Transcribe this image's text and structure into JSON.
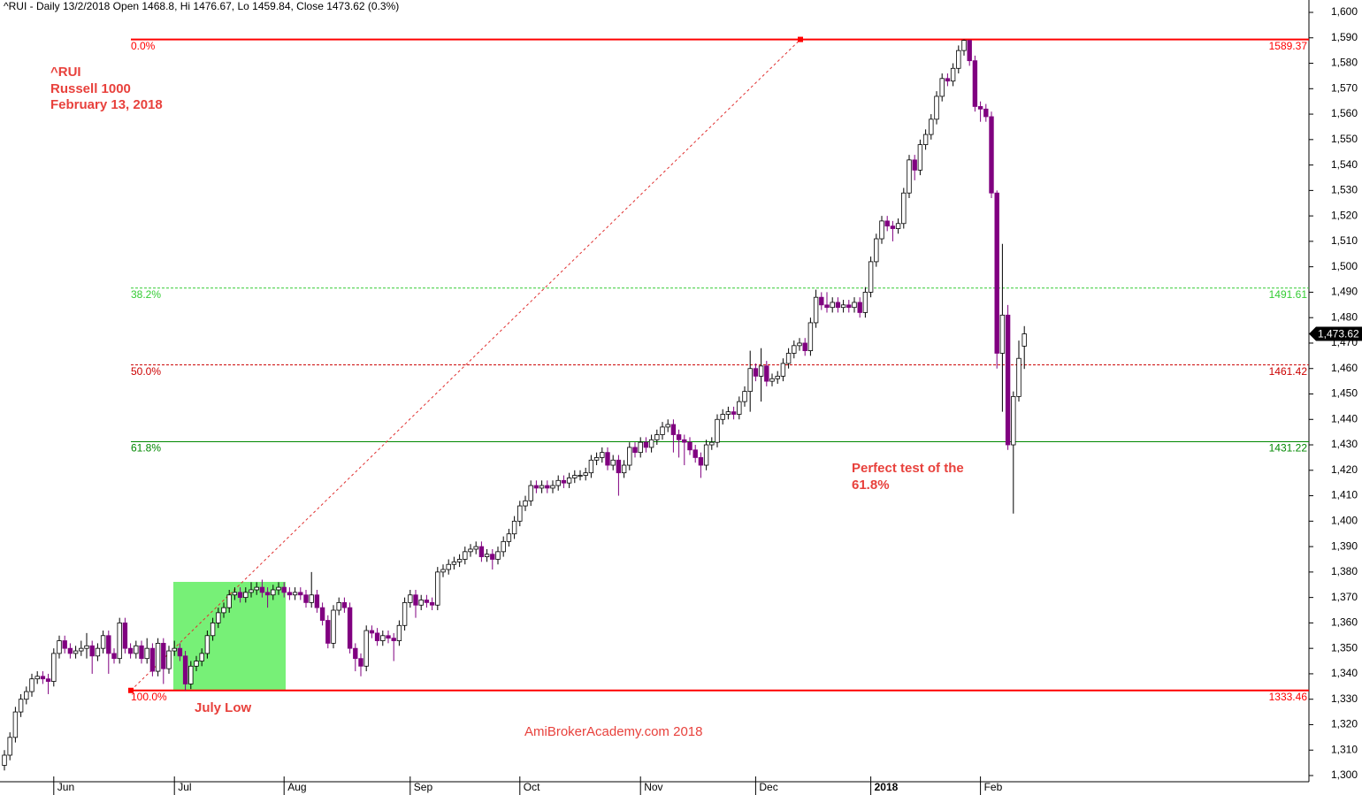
{
  "chart_data": {
    "type": "candlestick",
    "title": "^RUI - Daily 13/2/2018 Open 1468.8, Hi 1476.67, Lo 1459.84, Close 1473.62 (0.3%)",
    "annotations": {
      "symbol": "^RUI",
      "name": "Russell 1000",
      "date": "February 13, 2018",
      "july_low": "July Low",
      "test_line1": "Perfect test of the",
      "test_line2": "61.8%",
      "watermark": "AmiBrokerAcademy.com   2018"
    },
    "last_price_label": "1,473.62",
    "last_price": 1473.62,
    "up_color": "#ffffff",
    "down_color": "#800080",
    "open": [
      1304,
      1308,
      1315,
      1325,
      1330,
      1333,
      1338,
      1339,
      1338,
      1337,
      1348,
      1353,
      1350,
      1348,
      1349,
      1350,
      1351,
      1347,
      1350,
      1355,
      1348,
      1346,
      1360,
      1350,
      1348,
      1351,
      1346,
      1350,
      1341,
      1352,
      1342,
      1349,
      1350,
      1347,
      1336,
      1343,
      1345,
      1348,
      1355,
      1360,
      1364,
      1366,
      1371,
      1372,
      1370,
      1372,
      1373,
      1374,
      1372,
      1371,
      1373,
      1374,
      1372,
      1371,
      1372,
      1371,
      1368,
      1371,
      1366,
      1361,
      1352,
      1365,
      1368,
      1366,
      1350,
      1346,
      1343,
      1357,
      1356,
      1353,
      1355,
      1354,
      1353,
      1359,
      1368,
      1371,
      1367,
      1369,
      1368,
      1367,
      1380,
      1381,
      1383,
      1384,
      1385,
      1388,
      1389,
      1390,
      1386,
      1387,
      1385,
      1388,
      1392,
      1395,
      1400,
      1406,
      1408,
      1414,
      1413,
      1414,
      1413,
      1414,
      1416,
      1415,
      1417,
      1418,
      1418,
      1419,
      1424,
      1425,
      1427,
      1422,
      1424,
      1419,
      1422,
      1429,
      1427,
      1431,
      1429,
      1432,
      1434,
      1437,
      1438,
      1434,
      1432,
      1431,
      1428,
      1425,
      1422,
      1430,
      1431,
      1440,
      1442,
      1443,
      1442,
      1447,
      1451,
      1460,
      1457,
      1461,
      1455,
      1456,
      1457,
      1462,
      1466,
      1469,
      1470,
      1467,
      1478,
      1488,
      1485,
      1484,
      1486,
      1484,
      1485,
      1484,
      1486,
      1482,
      1490,
      1502,
      1511,
      1518,
      1516,
      1515,
      1517,
      1529,
      1542,
      1538,
      1548,
      1552,
      1558,
      1567,
      1574,
      1573,
      1578,
      1585,
      1589,
      1581,
      1563,
      1562,
      1559,
      1529,
      1466,
      1481,
      1430,
      1449,
      1468.8
    ],
    "high": [
      1310,
      1317,
      1327,
      1332,
      1335,
      1340,
      1341,
      1341,
      1340,
      1350,
      1355,
      1355,
      1352,
      1351,
      1353,
      1356,
      1353,
      1352,
      1357,
      1357,
      1350,
      1362,
      1362,
      1352,
      1353,
      1353,
      1354,
      1352,
      1354,
      1354,
      1351,
      1353,
      1352,
      1349,
      1345,
      1347,
      1350,
      1357,
      1362,
      1366,
      1368,
      1373,
      1374,
      1374,
      1374,
      1376,
      1376,
      1377,
      1374,
      1375,
      1376,
      1376,
      1374,
      1374,
      1374,
      1373,
      1380,
      1373,
      1368,
      1363,
      1367,
      1370,
      1370,
      1368,
      1352,
      1348,
      1359,
      1359,
      1358,
      1357,
      1357,
      1356,
      1361,
      1370,
      1373,
      1373,
      1371,
      1371,
      1370,
      1382,
      1383,
      1385,
      1386,
      1387,
      1390,
      1391,
      1392,
      1392,
      1389,
      1389,
      1390,
      1394,
      1397,
      1402,
      1408,
      1410,
      1416,
      1416,
      1416,
      1416,
      1416,
      1418,
      1418,
      1419,
      1420,
      1420,
      1421,
      1426,
      1427,
      1429,
      1429,
      1426,
      1426,
      1424,
      1431,
      1431,
      1433,
      1433,
      1434,
      1436,
      1439,
      1440,
      1440,
      1436,
      1434,
      1433,
      1430,
      1427,
      1432,
      1433,
      1442,
      1444,
      1445,
      1445,
      1449,
      1453,
      1467,
      1462,
      1468,
      1463,
      1458,
      1459,
      1464,
      1468,
      1471,
      1472,
      1472,
      1480,
      1491,
      1490,
      1490,
      1488,
      1488,
      1487,
      1487,
      1488,
      1488,
      1492,
      1504,
      1513,
      1520,
      1520,
      1518,
      1519,
      1531,
      1544,
      1544,
      1550,
      1554,
      1560,
      1569,
      1576,
      1576,
      1580,
      1587,
      1589.37,
      1589,
      1583,
      1565,
      1564,
      1561,
      1530,
      1509,
      1485,
      1451,
      1471,
      1476.67
    ],
    "low": [
      1302,
      1306,
      1313,
      1323,
      1328,
      1331,
      1336,
      1336,
      1332,
      1335,
      1346,
      1348,
      1346,
      1346,
      1347,
      1346,
      1340,
      1345,
      1348,
      1340,
      1344,
      1344,
      1348,
      1346,
      1346,
      1344,
      1344,
      1339,
      1339,
      1336,
      1340,
      1347,
      1345,
      1333.46,
      1334,
      1341,
      1343,
      1346,
      1353,
      1358,
      1362,
      1364,
      1369,
      1368,
      1368,
      1370,
      1371,
      1370,
      1366,
      1369,
      1371,
      1370,
      1369,
      1369,
      1369,
      1366,
      1366,
      1364,
      1359,
      1350,
      1350,
      1363,
      1364,
      1348,
      1341,
      1339,
      1341,
      1354,
      1351,
      1351,
      1352,
      1345,
      1351,
      1357,
      1366,
      1362,
      1365,
      1366,
      1365,
      1365,
      1378,
      1379,
      1381,
      1382,
      1383,
      1386,
      1387,
      1384,
      1384,
      1381,
      1383,
      1386,
      1390,
      1393,
      1398,
      1404,
      1406,
      1411,
      1411,
      1411,
      1411,
      1412,
      1413,
      1413,
      1415,
      1416,
      1416,
      1417,
      1422,
      1423,
      1420,
      1420,
      1410,
      1417,
      1420,
      1425,
      1425,
      1427,
      1427,
      1430,
      1432,
      1435,
      1427,
      1425,
      1422,
      1426,
      1423,
      1417,
      1420,
      1428,
      1429,
      1438,
      1440,
      1440,
      1440,
      1445,
      1443,
      1455,
      1447,
      1453,
      1453,
      1454,
      1455,
      1460,
      1464,
      1467,
      1465,
      1465,
      1476,
      1483,
      1482,
      1482,
      1482,
      1482,
      1482,
      1482,
      1480,
      1480,
      1488,
      1500,
      1509,
      1514,
      1510,
      1513,
      1515,
      1527,
      1534,
      1536,
      1546,
      1550,
      1556,
      1565,
      1571,
      1571,
      1576,
      1583,
      1579,
      1561,
      1557,
      1557,
      1527,
      1460,
      1443,
      1428,
      1403,
      1447,
      1459.84
    ],
    "close": [
      1308,
      1315,
      1325,
      1330,
      1333,
      1338,
      1339,
      1338,
      1337,
      1348,
      1353,
      1350,
      1348,
      1349,
      1350,
      1351,
      1347,
      1350,
      1355,
      1348,
      1346,
      1360,
      1350,
      1348,
      1351,
      1346,
      1350,
      1341,
      1352,
      1342,
      1349,
      1350,
      1347,
      1336,
      1343,
      1345,
      1348,
      1355,
      1360,
      1364,
      1366,
      1371,
      1372,
      1370,
      1372,
      1373,
      1374,
      1372,
      1371,
      1373,
      1374,
      1372,
      1371,
      1372,
      1371,
      1368,
      1371,
      1366,
      1361,
      1352,
      1365,
      1368,
      1366,
      1350,
      1346,
      1343,
      1357,
      1356,
      1353,
      1355,
      1354,
      1353,
      1359,
      1368,
      1371,
      1367,
      1369,
      1368,
      1367,
      1380,
      1381,
      1383,
      1384,
      1385,
      1388,
      1389,
      1390,
      1386,
      1387,
      1385,
      1388,
      1392,
      1395,
      1400,
      1406,
      1408,
      1414,
      1413,
      1414,
      1413,
      1414,
      1416,
      1415,
      1417,
      1418,
      1418,
      1419,
      1424,
      1425,
      1427,
      1422,
      1424,
      1419,
      1422,
      1429,
      1427,
      1431,
      1429,
      1432,
      1434,
      1437,
      1438,
      1434,
      1432,
      1431,
      1428,
      1425,
      1422,
      1430,
      1431,
      1440,
      1442,
      1443,
      1442,
      1447,
      1451,
      1460,
      1457,
      1461,
      1455,
      1456,
      1457,
      1462,
      1466,
      1469,
      1470,
      1467,
      1478,
      1488,
      1485,
      1484,
      1486,
      1484,
      1485,
      1484,
      1486,
      1482,
      1490,
      1502,
      1511,
      1518,
      1516,
      1515,
      1517,
      1529,
      1542,
      1538,
      1548,
      1552,
      1558,
      1567,
      1574,
      1573,
      1578,
      1585,
      1589,
      1581,
      1563,
      1562,
      1559,
      1529,
      1466,
      1481,
      1430,
      1449,
      1464,
      1473.62
    ],
    "fib_levels": [
      {
        "label": "0.0%",
        "value": 1589.37,
        "color": "#ff0000",
        "style": "solid",
        "width": 2
      },
      {
        "label": "38.2%",
        "value": 1491.61,
        "color": "#33cc33",
        "style": "dashed",
        "width": 1
      },
      {
        "label": "50.0%",
        "value": 1461.42,
        "color": "#cc0000",
        "style": "dashed",
        "width": 1
      },
      {
        "label": "61.8%",
        "value": 1431.22,
        "color": "#008800",
        "style": "solid",
        "width": 1
      },
      {
        "label": "100.0%",
        "value": 1333.46,
        "color": "#ff0000",
        "style": "solid",
        "width": 2
      }
    ],
    "xticks": [
      {
        "value": 9,
        "label": "Jun"
      },
      {
        "value": 31,
        "label": "Jul"
      },
      {
        "value": 51,
        "label": "Aug"
      },
      {
        "value": 74,
        "label": "Sep"
      },
      {
        "value": 94,
        "label": "Oct"
      },
      {
        "value": 116,
        "label": "Nov"
      },
      {
        "value": 137,
        "label": "Dec"
      },
      {
        "value": 158,
        "label": "2018"
      },
      {
        "value": 178,
        "label": "Feb"
      }
    ],
    "ylim": [
      1300,
      1600
    ],
    "yticks": [
      {
        "value": 1300,
        "label": "1,300"
      },
      {
        "value": 1310,
        "label": "1,310"
      },
      {
        "value": 1320,
        "label": "1,320"
      },
      {
        "value": 1330,
        "label": "1,330"
      },
      {
        "value": 1340,
        "label": "1,340"
      },
      {
        "value": 1350,
        "label": "1,350"
      },
      {
        "value": 1360,
        "label": "1,360"
      },
      {
        "value": 1370,
        "label": "1,370"
      },
      {
        "value": 1380,
        "label": "1,380"
      },
      {
        "value": 1390,
        "label": "1,390"
      },
      {
        "value": 1400,
        "label": "1,400"
      },
      {
        "value": 1410,
        "label": "1,410"
      },
      {
        "value": 1420,
        "label": "1,420"
      },
      {
        "value": 1430,
        "label": "1,430"
      },
      {
        "value": 1440,
        "label": "1,440"
      },
      {
        "value": 1450,
        "label": "1,450"
      },
      {
        "value": 1460,
        "label": "1,460"
      },
      {
        "value": 1470,
        "label": "1,470"
      },
      {
        "value": 1480,
        "label": "1,480"
      },
      {
        "value": 1490,
        "label": "1,490"
      },
      {
        "value": 1500,
        "label": "1,500"
      },
      {
        "value": 1510,
        "label": "1,510"
      },
      {
        "value": 1520,
        "label": "1,520"
      },
      {
        "value": 1530,
        "label": "1,530"
      },
      {
        "value": 1540,
        "label": "1,540"
      },
      {
        "value": 1550,
        "label": "1,550"
      },
      {
        "value": 1560,
        "label": "1,560"
      },
      {
        "value": 1570,
        "label": "1,570"
      },
      {
        "value": 1580,
        "label": "1,580"
      },
      {
        "value": 1590,
        "label": "1,590"
      },
      {
        "value": 1600,
        "label": "1,600"
      }
    ]
  }
}
